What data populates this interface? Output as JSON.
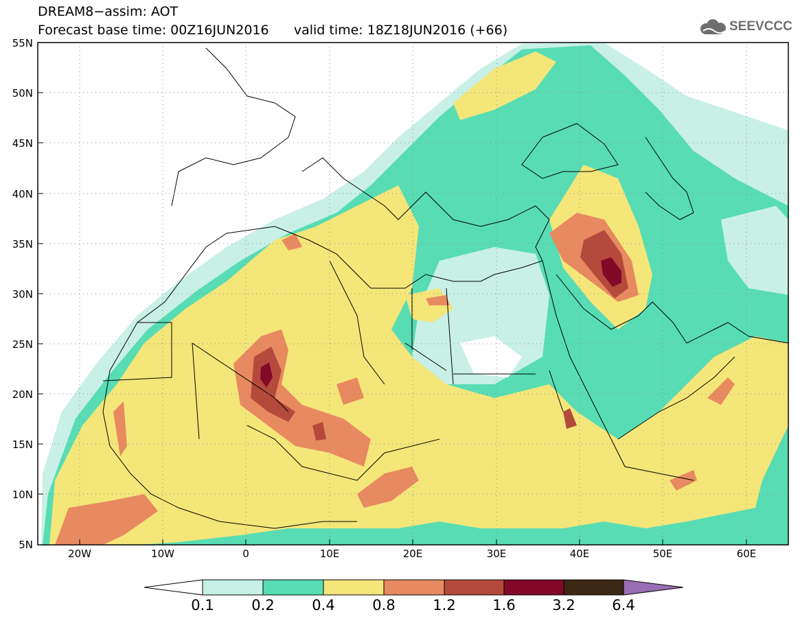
{
  "header": {
    "title_line1": "DREAM8−assim: AOT",
    "title_line2": "Forecast base time: 00Z16JUN2016      valid time: 18Z18JUN2016 (+66)",
    "logo_text": "SEEVCCC"
  },
  "map": {
    "variable": "AOT",
    "lat_labels": [
      "55N",
      "50N",
      "45N",
      "40N",
      "35N",
      "30N",
      "25N",
      "20N",
      "15N",
      "10N",
      "5N"
    ],
    "lon_labels": [
      "20W",
      "10W",
      "0",
      "10E",
      "20E",
      "30E",
      "40E",
      "50E",
      "60E"
    ],
    "lat_range": [
      5,
      55
    ],
    "lon_range": [
      -25,
      65
    ]
  },
  "colorbar": {
    "levels": [
      "0.1",
      "0.2",
      "0.4",
      "0.8",
      "1.2",
      "1.6",
      "3.2",
      "6.4"
    ],
    "colors": [
      "#c8f0e6",
      "#58dcb4",
      "#f5e67a",
      "#e88a60",
      "#b44a3c",
      "#820a28",
      "#3c2814",
      "#9a6eb4"
    ],
    "under_color": "#ffffff"
  }
}
